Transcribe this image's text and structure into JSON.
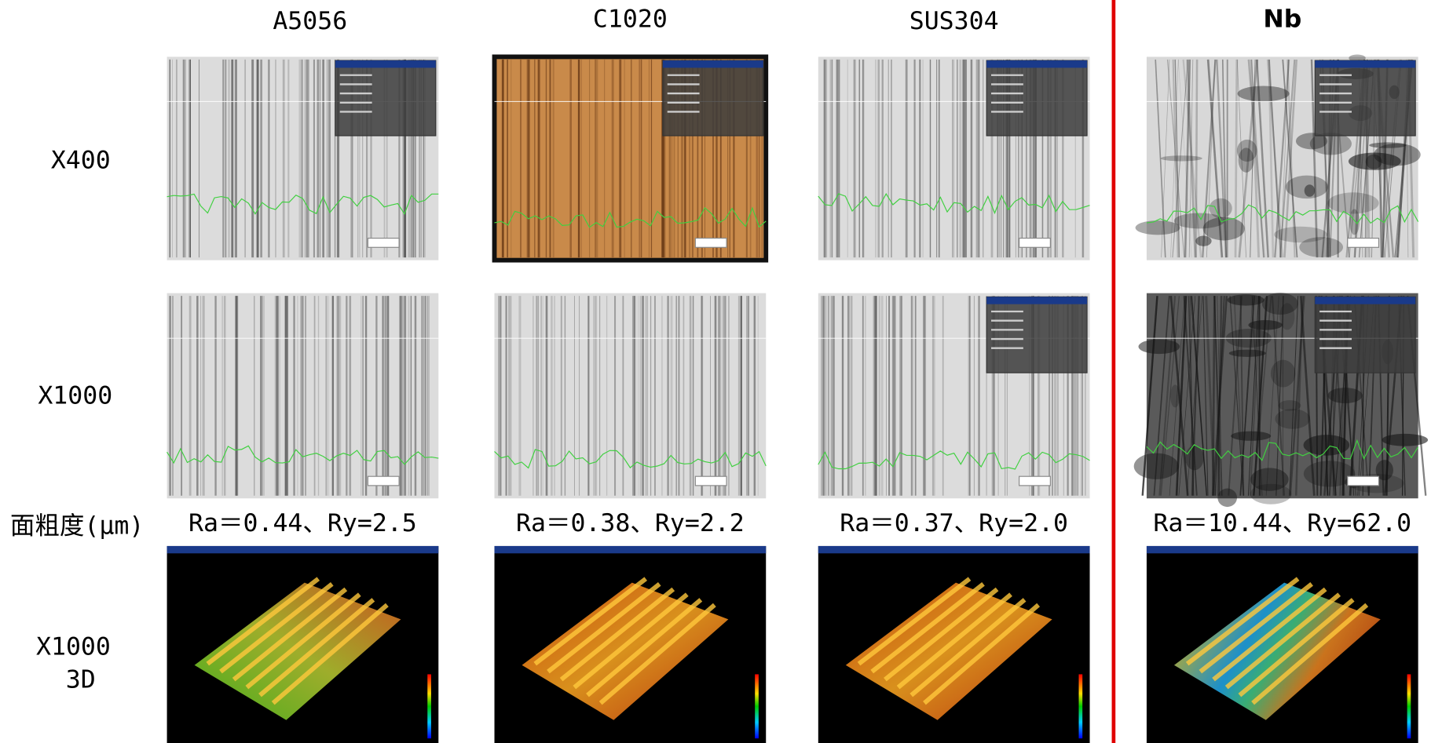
{
  "columns": [
    "A5056",
    "C1020",
    "SUS304",
    "Nb"
  ],
  "row_labels": {
    "x400": "X400",
    "x1000": "X1000",
    "roughness": "面粗度(μm)",
    "x1000_3d": [
      "X1000",
      "3D"
    ]
  },
  "roughness": [
    "Ra＝0.44、Ry=2.5",
    "Ra＝0.38、Ry=2.2",
    "Ra＝0.37、Ry=2.0",
    "Ra＝10.44、Ry=62.0"
  ]
}
